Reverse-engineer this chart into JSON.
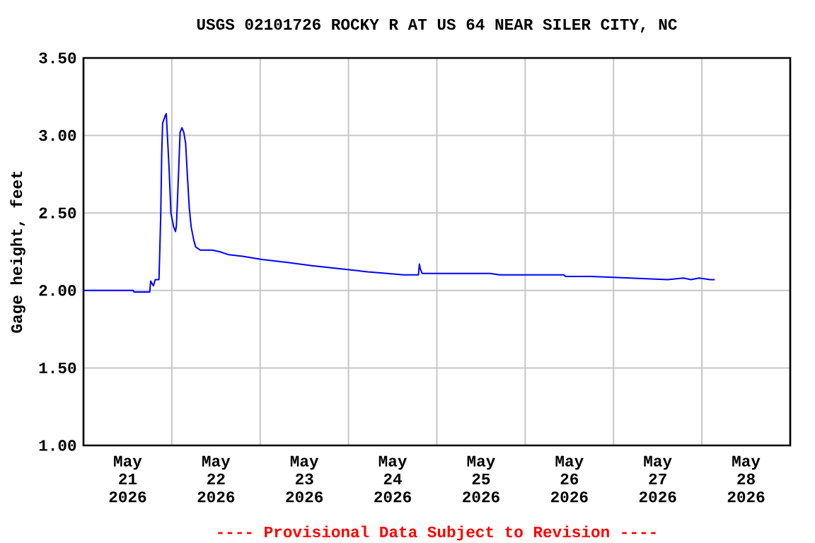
{
  "chart_data": {
    "type": "line",
    "title": "USGS 02101726 ROCKY R AT US 64 NEAR SILER CITY, NC",
    "ylabel": "Gage height, feet",
    "annotations": [
      "---- Provisional Data Subject to Revision ----"
    ],
    "color": "#0000ff",
    "grid": true,
    "x": [
      "2026-05-21T00:00",
      "2026-05-21T13:30",
      "2026-05-21T13:45",
      "2026-05-21T18:00",
      "2026-05-21T18:15",
      "2026-05-21T19:00",
      "2026-05-21T19:30",
      "2026-05-21T20:30",
      "2026-05-21T20:45",
      "2026-05-21T21:00",
      "2026-05-21T21:15",
      "2026-05-21T21:30",
      "2026-05-21T22:15",
      "2026-05-21T22:30",
      "2026-05-21T22:45",
      "2026-05-21T23:15",
      "2026-05-21T23:45",
      "2026-05-22T00:30",
      "2026-05-22T01:00",
      "2026-05-22T01:15",
      "2026-05-22T01:45",
      "2026-05-22T02:15",
      "2026-05-22T02:45",
      "2026-05-22T03:15",
      "2026-05-22T03:45",
      "2026-05-22T04:15",
      "2026-05-22T04:45",
      "2026-05-22T05:15",
      "2026-05-22T06:00",
      "2026-05-22T06:30",
      "2026-05-22T07:45",
      "2026-05-22T11:00",
      "2026-05-22T13:00",
      "2026-05-22T15:30",
      "2026-05-22T19:15",
      "2026-05-23T00:30",
      "2026-05-23T07:30",
      "2026-05-23T14:00",
      "2026-05-23T21:30",
      "2026-05-24T01:30",
      "2026-05-24T05:15",
      "2026-05-24T10:30",
      "2026-05-24T15:00",
      "2026-05-24T19:00",
      "2026-05-24T19:15",
      "2026-05-24T19:30",
      "2026-05-24T20:00",
      "2026-05-25T14:30",
      "2026-05-25T17:00",
      "2026-05-26T10:30",
      "2026-05-26T11:00",
      "2026-05-26T18:00",
      "2026-05-27T04:30",
      "2026-05-27T14:45",
      "2026-05-27T19:00",
      "2026-05-27T21:00",
      "2026-05-27T23:15",
      "2026-05-28T02:15",
      "2026-05-28T03:30"
    ],
    "values": [
      2.0,
      2.0,
      1.99,
      1.99,
      2.06,
      2.03,
      2.07,
      2.07,
      2.27,
      2.5,
      2.88,
      3.08,
      3.13,
      3.14,
      3.02,
      2.79,
      2.5,
      2.41,
      2.38,
      2.42,
      2.71,
      3.02,
      3.05,
      3.02,
      2.95,
      2.73,
      2.53,
      2.41,
      2.32,
      2.28,
      2.26,
      2.26,
      2.25,
      2.23,
      2.22,
      2.2,
      2.18,
      2.16,
      2.14,
      2.13,
      2.12,
      2.11,
      2.1,
      2.1,
      2.17,
      2.14,
      2.11,
      2.11,
      2.1,
      2.1,
      2.09,
      2.09,
      2.08,
      2.07,
      2.08,
      2.07,
      2.08,
      2.07,
      2.07
    ],
    "xlim": [
      "2026-05-21",
      "2026-05-29"
    ],
    "xticks": [
      {
        "value": "2026-05-21T12:00",
        "label": "May 21 2026"
      },
      {
        "value": "2026-05-22T00:00",
        "label": null
      },
      {
        "value": "2026-05-22T12:00",
        "label": "May 22 2026"
      },
      {
        "value": "2026-05-23T00:00",
        "label": null
      },
      {
        "value": "2026-05-23T12:00",
        "label": "May 23 2026"
      },
      {
        "value": "2026-05-24T00:00",
        "label": null
      },
      {
        "value": "2026-05-24T12:00",
        "label": "May 24 2026"
      },
      {
        "value": "2026-05-25T00:00",
        "label": null
      },
      {
        "value": "2026-05-25T12:00",
        "label": "May 25 2026"
      },
      {
        "value": "2026-05-26T00:00",
        "label": null
      },
      {
        "value": "2026-05-26T12:00",
        "label": "May 26 2026"
      },
      {
        "value": "2026-05-27T00:00",
        "label": null
      },
      {
        "value": "2026-05-27T12:00",
        "label": "May 27 2026"
      },
      {
        "value": "2026-05-28T00:00",
        "label": null
      },
      {
        "value": "2026-05-28T12:00",
        "label": "May 28 2026"
      }
    ],
    "ylim": [
      1.0,
      3.5
    ],
    "yticks": [
      {
        "value": 1.0,
        "label": "1.00"
      },
      {
        "value": 1.5,
        "label": "1.50"
      },
      {
        "value": 2.0,
        "label": "2.00"
      },
      {
        "value": 2.5,
        "label": "2.50"
      },
      {
        "value": 3.0,
        "label": "3.00"
      },
      {
        "value": 3.5,
        "label": "3.50"
      }
    ]
  }
}
